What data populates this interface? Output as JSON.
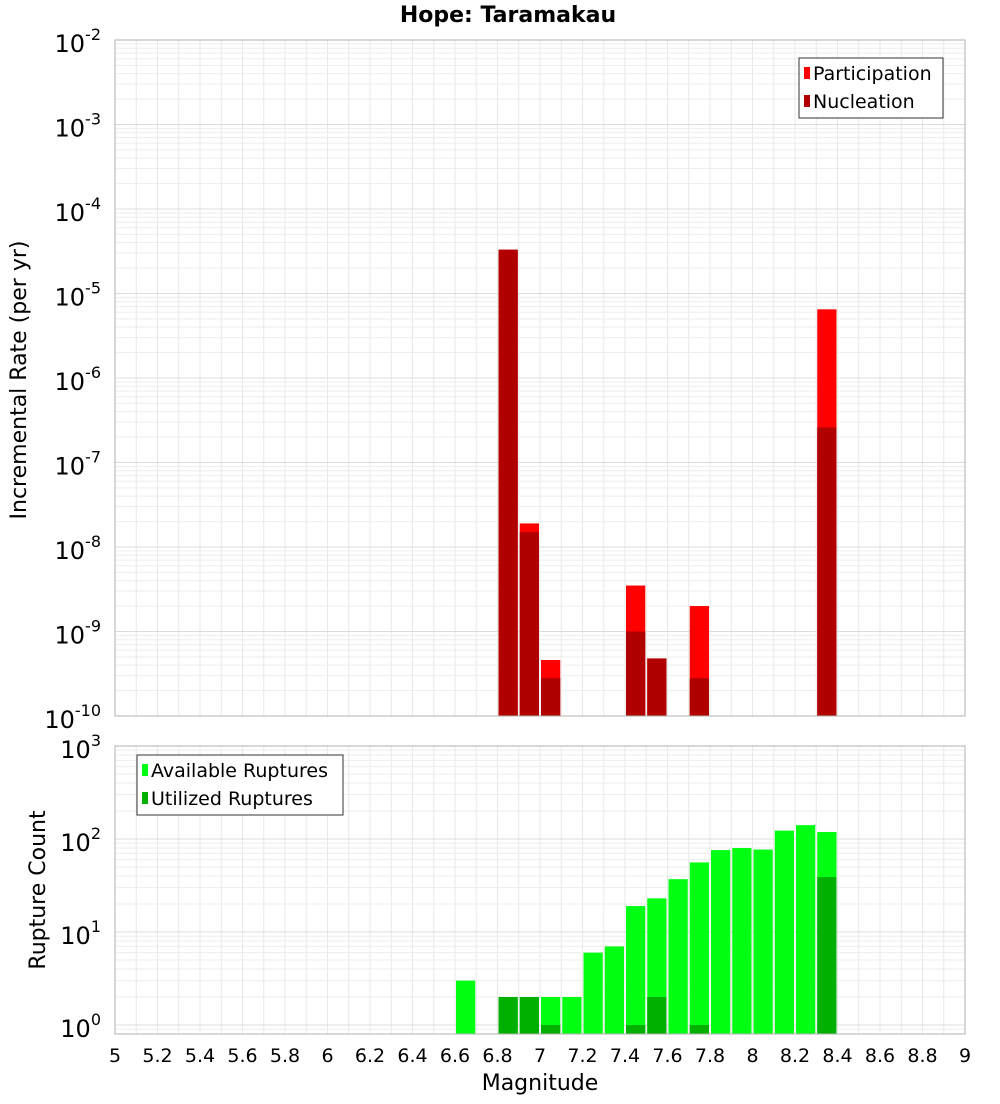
{
  "chart_data": [
    {
      "type": "bar",
      "title": "Hope: Taramakau",
      "xlabel": "",
      "ylabel": "Incremental Rate (per yr)",
      "xlim": [
        5,
        9
      ],
      "ylim": [
        1e-10,
        0.01
      ],
      "yscale": "log",
      "grid": true,
      "legend_position": "top-right",
      "bin_width": 0.1,
      "series": [
        {
          "name": "Participation",
          "color": "#ff0000",
          "x": [
            6.85,
            6.95,
            7.05,
            7.45,
            7.55,
            7.75,
            8.35
          ],
          "values": [
            3.3e-05,
            1.9e-08,
            4.6e-10,
            3.5e-09,
            4.8e-10,
            2e-09,
            6.5e-06
          ]
        },
        {
          "name": "Nucleation",
          "color": "#b00000",
          "x": [
            6.85,
            6.95,
            7.05,
            7.45,
            7.55,
            7.75,
            8.35
          ],
          "values": [
            3.3e-05,
            1.5e-08,
            2.8e-10,
            1e-09,
            4.8e-10,
            2.8e-10,
            2.6e-07
          ]
        }
      ]
    },
    {
      "type": "bar",
      "xlabel": "Magnitude",
      "ylabel": "Rupture Count",
      "xlim": [
        5,
        9
      ],
      "ylim": [
        0.8,
        1000
      ],
      "yscale": "log",
      "grid": true,
      "legend_position": "top-left",
      "bin_width": 0.1,
      "series": [
        {
          "name": "Available Ruptures",
          "color": "#00ff12",
          "x": [
            6.65,
            6.85,
            6.95,
            7.05,
            7.15,
            7.25,
            7.35,
            7.45,
            7.55,
            7.65,
            7.75,
            7.85,
            7.95,
            8.05,
            8.15,
            8.25,
            8.35
          ],
          "values": [
            3,
            2,
            2,
            2,
            2,
            6,
            7,
            19,
            23,
            37,
            56,
            76,
            80,
            77,
            123,
            141,
            119
          ]
        },
        {
          "name": "Utilized Ruptures",
          "color": "#00b000",
          "x": [
            6.85,
            6.95,
            7.05,
            7.45,
            7.55,
            7.75,
            8.35
          ],
          "values": [
            2,
            2,
            1,
            1,
            2,
            1,
            39
          ]
        }
      ]
    }
  ],
  "x_ticks": [
    "5",
    "5.2",
    "5.4",
    "5.6",
    "5.8",
    "6",
    "6.2",
    "6.4",
    "6.6",
    "6.8",
    "7",
    "7.2",
    "7.4",
    "7.6",
    "7.8",
    "8",
    "8.2",
    "8.4",
    "8.6",
    "8.8",
    "9"
  ],
  "top_y_ticks": [
    {
      "base": "10",
      "exp": "-2"
    },
    {
      "base": "10",
      "exp": "-3"
    },
    {
      "base": "10",
      "exp": "-4"
    },
    {
      "base": "10",
      "exp": "-5"
    },
    {
      "base": "10",
      "exp": "-6"
    },
    {
      "base": "10",
      "exp": "-7"
    },
    {
      "base": "10",
      "exp": "-8"
    },
    {
      "base": "10",
      "exp": "-9"
    },
    {
      "base": "10",
      "exp": "-10"
    }
  ],
  "bottom_y_ticks": [
    {
      "base": "10",
      "exp": "3"
    },
    {
      "base": "10",
      "exp": "2"
    },
    {
      "base": "10",
      "exp": "1"
    },
    {
      "base": "10",
      "exp": "0"
    }
  ]
}
